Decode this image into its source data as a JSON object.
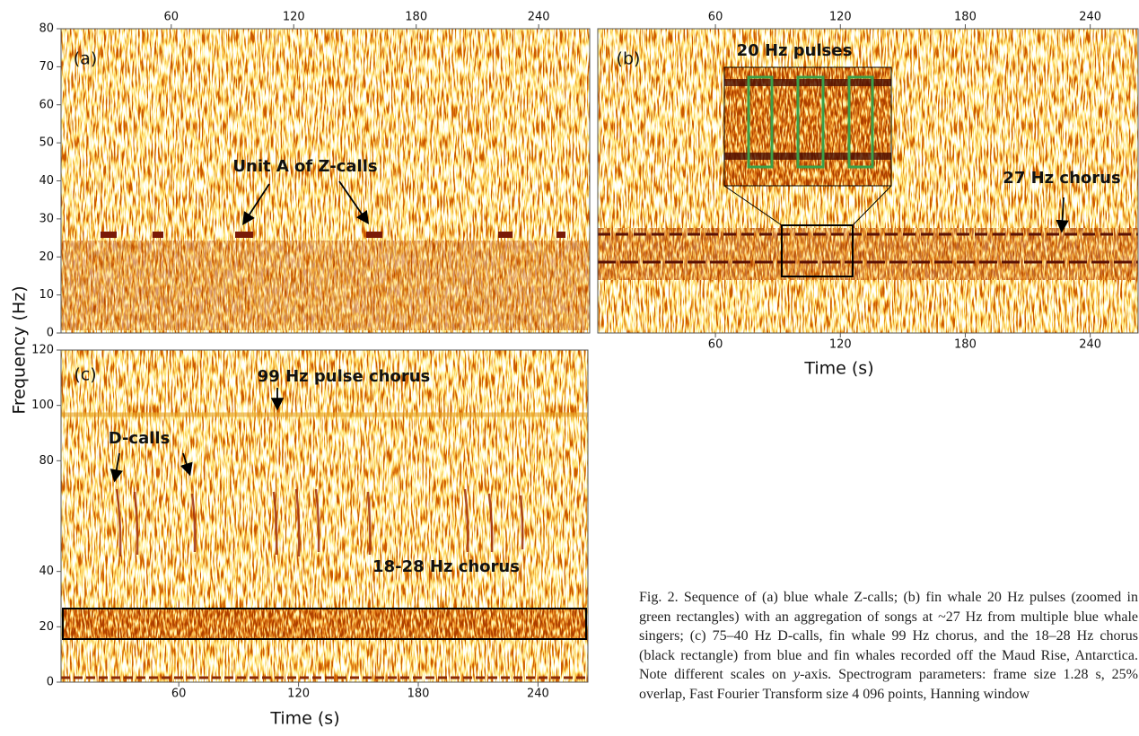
{
  "figure": {
    "y_label": "Frequency (Hz)",
    "x_label": "Time (s)",
    "panels": [
      {
        "label": "(a)",
        "xlim": [
          6,
          265
        ],
        "ylim": [
          0,
          80
        ],
        "xticks": [
          60,
          120,
          180,
          240
        ],
        "yticks": [
          0,
          10,
          20,
          30,
          40,
          50,
          60,
          70,
          80
        ],
        "annotations": [
          "Unit A of Z-calls"
        ]
      },
      {
        "label": "(b)",
        "xlim": [
          3.5,
          263
        ],
        "xticks": [
          60,
          120,
          180,
          240
        ],
        "annotations": [
          "20 Hz pulses",
          "27 Hz chorus"
        ]
      },
      {
        "label": "(c)",
        "xlim": [
          1,
          265
        ],
        "ylim": [
          0,
          120
        ],
        "xticks": [
          60,
          120,
          180,
          240
        ],
        "yticks": [
          0,
          20,
          40,
          80,
          100,
          120
        ],
        "annotations": [
          "99 Hz pulse chorus",
          "D-calls",
          "18-28 Hz chorus"
        ]
      }
    ],
    "caption": {
      "before": "Fig. 2. Sequence of (a) blue whale Z-calls; (b) fin whale 20 Hz pulses (zoomed in green rectangles) with an aggregation of songs at ~27 Hz from multiple blue whale singers; (c) 75–40 Hz D-calls, fin whale 99 Hz chorus, and the 18–28 Hz chorus (black rectangle) from blue and fin whales recorded off the Maud Rise, Antarctica. Note different scales on ",
      "italic": "y",
      "after": "-axis. Spectrogram parameters: frame size 1.28 s, 25% overlap, Fast Fourier Transform size 4 096 points, Hanning window"
    }
  }
}
